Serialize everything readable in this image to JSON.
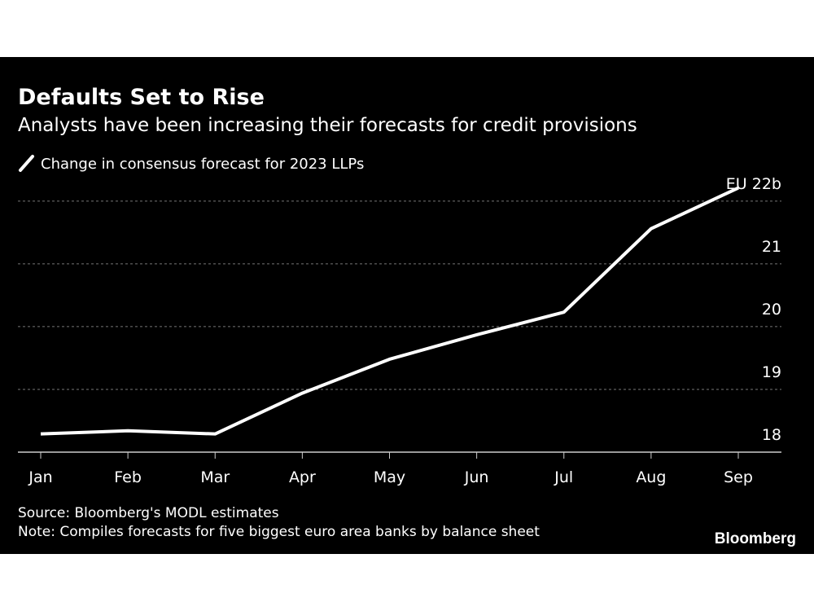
{
  "chart_data": {
    "type": "line",
    "title": "Defaults Set to Rise",
    "subtitle": "Analysts have been increasing their forecasts for credit provisions",
    "categories": [
      "Jan",
      "Feb",
      "Mar",
      "Apr",
      "May",
      "Jun",
      "Jul",
      "Aug",
      "Sep"
    ],
    "series": [
      {
        "name": "Change in consensus forecast for 2023 LLPs",
        "color": "#ffffff",
        "values": [
          18.29,
          18.34,
          18.29,
          18.94,
          19.48,
          19.87,
          20.23,
          21.56,
          22.21
        ]
      }
    ],
    "ylim": [
      18,
      22.4
    ],
    "yticks": [
      18,
      19,
      20,
      21,
      {
        "value": 22,
        "label": "EU 22b"
      }
    ],
    "grid": true,
    "source": "Source: Bloomberg's MODL estimates",
    "note": "Note: Compiles forecasts for five biggest euro area banks by balance sheet",
    "brand": "Bloomberg"
  }
}
